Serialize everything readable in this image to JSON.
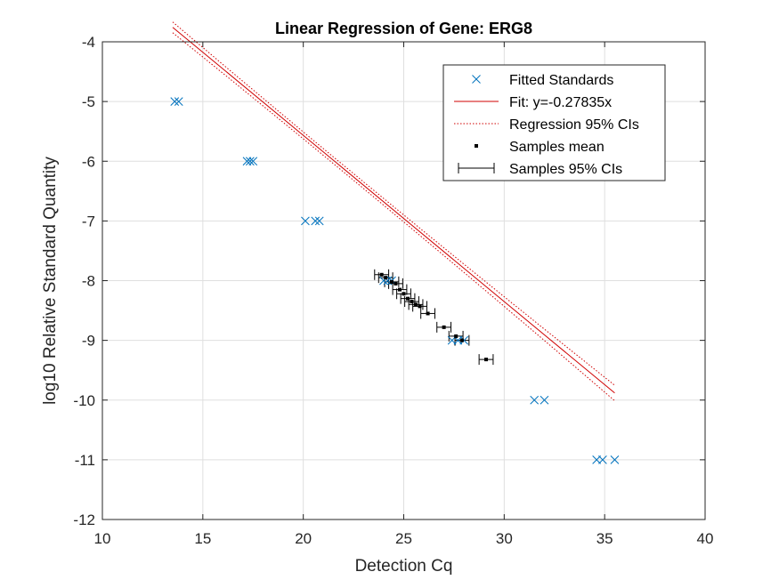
{
  "chart_data": {
    "type": "scatter",
    "title": "Linear Regression of Gene: ERG8",
    "xlabel": "Detection Cq",
    "ylabel": "log10 Relative Standard Quantity",
    "xlim": [
      10,
      40
    ],
    "ylim": [
      -12,
      -4
    ],
    "xticks": [
      "10",
      "15",
      "20",
      "25",
      "30",
      "35",
      "40"
    ],
    "yticks": [
      "-12",
      "-11",
      "-10",
      "-9",
      "-8",
      "-7",
      "-6",
      "-5",
      "-4"
    ],
    "grid": true,
    "legend_position": "top-right",
    "series": [
      {
        "name": "Fitted Standards",
        "kind": "marker-x",
        "color": "#0072BD",
        "points": [
          [
            13.6,
            -5
          ],
          [
            13.8,
            -5
          ],
          [
            17.2,
            -6
          ],
          [
            17.35,
            -6
          ],
          [
            17.5,
            -6
          ],
          [
            20.1,
            -7
          ],
          [
            20.6,
            -7
          ],
          [
            20.8,
            -7
          ],
          [
            24.0,
            -8
          ],
          [
            24.2,
            -8
          ],
          [
            24.4,
            -8
          ],
          [
            27.4,
            -9
          ],
          [
            27.7,
            -9
          ],
          [
            28.0,
            -9
          ],
          [
            31.5,
            -10
          ],
          [
            32.0,
            -10
          ],
          [
            34.6,
            -11
          ],
          [
            34.9,
            -11
          ],
          [
            35.5,
            -11
          ]
        ]
      },
      {
        "name": "Fit: y=-0.27835x",
        "kind": "line",
        "color": "#D00000",
        "slope": -0.27835,
        "x_range": [
          13.5,
          35.5
        ]
      },
      {
        "name": "Regression 95% CIs",
        "kind": "dotted-band",
        "color": "#D00000",
        "slope": -0.27835,
        "half_width": [
          0.09,
          0.005,
          0.13
        ],
        "x_range": [
          13.5,
          35.5
        ]
      },
      {
        "name": "Samples mean",
        "kind": "marker-square",
        "color": "#000000",
        "points": [
          [
            23.9,
            -7.9
          ],
          [
            24.1,
            -7.95
          ],
          [
            24.4,
            -8.02
          ],
          [
            24.6,
            -8.05
          ],
          [
            24.8,
            -8.15
          ],
          [
            25.0,
            -8.22
          ],
          [
            25.2,
            -8.3
          ],
          [
            25.4,
            -8.35
          ],
          [
            25.6,
            -8.4
          ],
          [
            25.8,
            -8.43
          ],
          [
            26.2,
            -8.55
          ],
          [
            27.0,
            -8.78
          ],
          [
            27.6,
            -8.93
          ],
          [
            27.9,
            -9.0
          ],
          [
            29.1,
            -9.32
          ]
        ]
      },
      {
        "name": "Samples 95% CIs",
        "kind": "horizontal-errorbar",
        "color": "#000000",
        "half_width": 0.35,
        "points": [
          [
            23.9,
            -7.9
          ],
          [
            24.1,
            -7.95
          ],
          [
            24.4,
            -8.02
          ],
          [
            24.6,
            -8.05
          ],
          [
            24.8,
            -8.15
          ],
          [
            25.0,
            -8.22
          ],
          [
            25.2,
            -8.3
          ],
          [
            25.4,
            -8.35
          ],
          [
            25.6,
            -8.4
          ],
          [
            25.8,
            -8.43
          ],
          [
            26.2,
            -8.55
          ],
          [
            27.0,
            -8.78
          ],
          [
            27.6,
            -8.93
          ],
          [
            27.9,
            -9.0
          ],
          [
            29.1,
            -9.32
          ]
        ]
      }
    ]
  }
}
